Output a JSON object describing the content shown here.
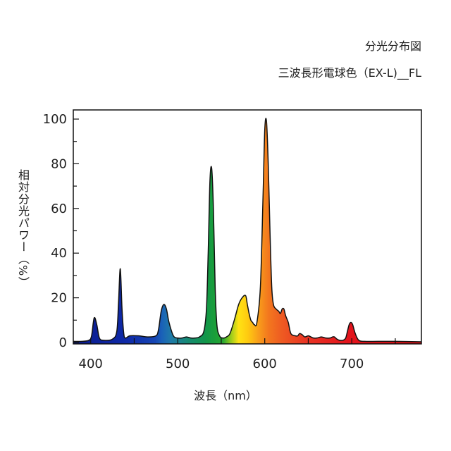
{
  "chart_data": {
    "type": "area",
    "title": "分光分布図",
    "subtitle": "三波長形電球色（EX-L)__FL",
    "xlabel": "波長（nm）",
    "ylabel": "相対分光パワー（%）",
    "xlim": [
      380,
      780
    ],
    "ylim": [
      0,
      105
    ],
    "xticks": [
      400,
      500,
      600,
      700
    ],
    "yticks": [
      0,
      20,
      40,
      60,
      80,
      100
    ],
    "grid": false,
    "fill": "visible-spectrum gradient",
    "series": [
      {
        "x": [
          380,
          390,
          398,
          401,
          404,
          407,
          410,
          415,
          425,
          430,
          432,
          434,
          436,
          438,
          440,
          445,
          455,
          465,
          475,
          478,
          481,
          484,
          487,
          490,
          495,
          500,
          505,
          510,
          515,
          520,
          525,
          530,
          533,
          535,
          537,
          539,
          541,
          543,
          545,
          548,
          552,
          556,
          560,
          565,
          570,
          574,
          578,
          580,
          582,
          584,
          586,
          588,
          591,
          595,
          598,
          600,
          602,
          604,
          606,
          608,
          610,
          613,
          616,
          618,
          620,
          622,
          624,
          627,
          630,
          635,
          638,
          640,
          643,
          646,
          650,
          653,
          656,
          660,
          665,
          670,
          675,
          678,
          680,
          683,
          686,
          690,
          693,
          695,
          697,
          699,
          701,
          704,
          708,
          715,
          730,
          750,
          780
        ],
        "values": [
          0.5,
          0.5,
          1,
          3,
          11,
          8,
          2,
          1,
          1.5,
          5,
          18,
          33,
          15,
          4,
          2,
          3,
          3,
          2.5,
          3,
          6,
          14,
          17,
          15,
          9,
          3,
          2,
          2,
          2.5,
          2,
          2,
          2.5,
          5,
          15,
          40,
          72,
          78,
          60,
          25,
          8,
          3,
          2,
          2.5,
          4,
          10,
          17,
          20,
          21,
          17,
          13,
          10,
          9,
          8,
          9,
          25,
          65,
          95,
          99,
          80,
          50,
          25,
          17,
          15,
          14,
          13,
          15,
          15,
          12,
          9,
          4,
          3,
          3,
          4,
          3.5,
          2.5,
          3,
          2.5,
          2,
          2,
          2.5,
          2,
          2,
          2.5,
          2.5,
          1.5,
          1,
          1,
          2,
          5,
          8,
          9,
          8,
          4,
          1,
          0.5,
          0.5,
          0.5,
          0.3
        ]
      }
    ]
  }
}
